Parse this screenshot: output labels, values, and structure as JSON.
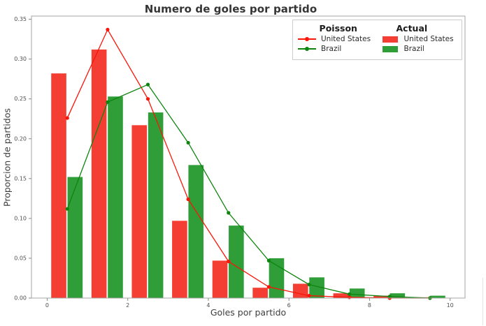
{
  "chart_data": {
    "type": "bar+line",
    "title": "Numero de goles por partido",
    "xlabel": "Goles por partido",
    "ylabel": "Proporcion de partidos",
    "x_ticks": [
      0,
      2,
      4,
      6,
      8,
      10
    ],
    "y_ticks": [
      0,
      0.05,
      0.1,
      0.15,
      0.2,
      0.25,
      0.3,
      0.35
    ],
    "xlim": [
      -0.39,
      10.37
    ],
    "ylim": [
      0,
      0.354
    ],
    "grid": false,
    "legend_position": "upper right",
    "goals": [
      0,
      1,
      2,
      3,
      4,
      5,
      6,
      7,
      8,
      9
    ],
    "bar_series": [
      {
        "name": "United States",
        "color": "#f43e33",
        "values": [
          0.282,
          0.312,
          0.217,
          0.097,
          0.047,
          0.013,
          0.018,
          0.006,
          0.003,
          0.001
        ]
      },
      {
        "name": "Brazil",
        "color": "#2f9e38",
        "values": [
          0.152,
          0.253,
          0.233,
          0.167,
          0.091,
          0.05,
          0.026,
          0.012,
          0.006,
          0.003
        ]
      }
    ],
    "line_series": [
      {
        "name": "United States",
        "color": "#fb1408",
        "x_offset": 0.5,
        "values": [
          0.226,
          0.337,
          0.25,
          0.124,
          0.046,
          0.014,
          0.003,
          0.001,
          0.0,
          0.0
        ]
      },
      {
        "name": "Brazil",
        "color": "#0e850e",
        "x_offset": 0.5,
        "values": [
          0.112,
          0.246,
          0.268,
          0.195,
          0.107,
          0.047,
          0.017,
          0.005,
          0.002,
          0.0
        ]
      }
    ]
  },
  "legend": {
    "poisson_header": "Poisson",
    "actual_header": "Actual",
    "poisson": [
      {
        "label": "United States",
        "color": "#fb1408"
      },
      {
        "label": "Brazil",
        "color": "#0e850e"
      }
    ],
    "actual": [
      {
        "label": "United States",
        "color": "#f43e33"
      },
      {
        "label": "Brazil",
        "color": "#2f9e38"
      }
    ]
  }
}
